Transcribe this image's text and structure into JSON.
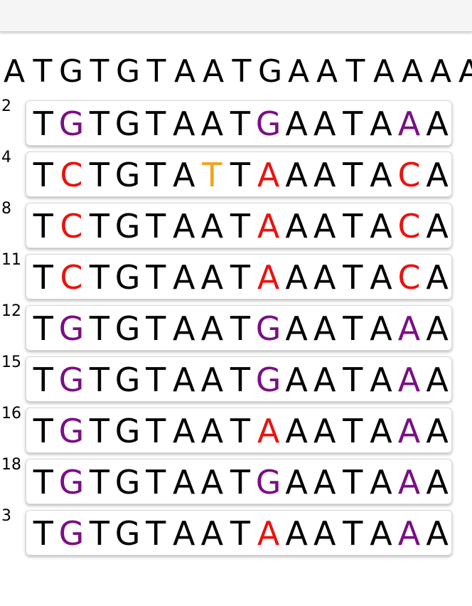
{
  "colors": {
    "default": "#000000",
    "mismatch_red": "#e8130f",
    "variant_purple": "#7a0f85",
    "insertion_orange": "#f3a21c"
  },
  "reference": {
    "sequence": "ATGTGTAATGAATAAAA"
  },
  "reads": [
    {
      "label": "2",
      "bases": [
        {
          "b": "T",
          "c": "default"
        },
        {
          "b": "G",
          "c": "variant_purple"
        },
        {
          "b": "T",
          "c": "default"
        },
        {
          "b": "G",
          "c": "default"
        },
        {
          "b": "T",
          "c": "default"
        },
        {
          "b": "A",
          "c": "default"
        },
        {
          "b": "A",
          "c": "default"
        },
        {
          "b": "T",
          "c": "default"
        },
        {
          "b": "G",
          "c": "variant_purple"
        },
        {
          "b": "A",
          "c": "default"
        },
        {
          "b": "A",
          "c": "default"
        },
        {
          "b": "T",
          "c": "default"
        },
        {
          "b": "A",
          "c": "default"
        },
        {
          "b": "A",
          "c": "variant_purple"
        },
        {
          "b": "A",
          "c": "default"
        }
      ]
    },
    {
      "label": "4",
      "bases": [
        {
          "b": "T",
          "c": "default"
        },
        {
          "b": "C",
          "c": "mismatch_red"
        },
        {
          "b": "T",
          "c": "default"
        },
        {
          "b": "G",
          "c": "default"
        },
        {
          "b": "T",
          "c": "default"
        },
        {
          "b": "A",
          "c": "default"
        },
        {
          "b": "T",
          "c": "insertion_orange"
        },
        {
          "b": "T",
          "c": "default"
        },
        {
          "b": "A",
          "c": "mismatch_red"
        },
        {
          "b": "A",
          "c": "default"
        },
        {
          "b": "A",
          "c": "default"
        },
        {
          "b": "T",
          "c": "default"
        },
        {
          "b": "A",
          "c": "default"
        },
        {
          "b": "C",
          "c": "mismatch_red"
        },
        {
          "b": "A",
          "c": "default"
        }
      ]
    },
    {
      "label": "8",
      "bases": [
        {
          "b": "T",
          "c": "default"
        },
        {
          "b": "C",
          "c": "mismatch_red"
        },
        {
          "b": "T",
          "c": "default"
        },
        {
          "b": "G",
          "c": "default"
        },
        {
          "b": "T",
          "c": "default"
        },
        {
          "b": "A",
          "c": "default"
        },
        {
          "b": "A",
          "c": "default"
        },
        {
          "b": "T",
          "c": "default"
        },
        {
          "b": "A",
          "c": "mismatch_red"
        },
        {
          "b": "A",
          "c": "default"
        },
        {
          "b": "A",
          "c": "default"
        },
        {
          "b": "T",
          "c": "default"
        },
        {
          "b": "A",
          "c": "default"
        },
        {
          "b": "C",
          "c": "mismatch_red"
        },
        {
          "b": "A",
          "c": "default"
        }
      ]
    },
    {
      "label": "11",
      "bases": [
        {
          "b": "T",
          "c": "default"
        },
        {
          "b": "C",
          "c": "mismatch_red"
        },
        {
          "b": "T",
          "c": "default"
        },
        {
          "b": "G",
          "c": "default"
        },
        {
          "b": "T",
          "c": "default"
        },
        {
          "b": "A",
          "c": "default"
        },
        {
          "b": "A",
          "c": "default"
        },
        {
          "b": "T",
          "c": "default"
        },
        {
          "b": "A",
          "c": "mismatch_red"
        },
        {
          "b": "A",
          "c": "default"
        },
        {
          "b": "A",
          "c": "default"
        },
        {
          "b": "T",
          "c": "default"
        },
        {
          "b": "A",
          "c": "default"
        },
        {
          "b": "C",
          "c": "mismatch_red"
        },
        {
          "b": "A",
          "c": "default"
        }
      ]
    },
    {
      "label": "12",
      "bases": [
        {
          "b": "T",
          "c": "default"
        },
        {
          "b": "G",
          "c": "variant_purple"
        },
        {
          "b": "T",
          "c": "default"
        },
        {
          "b": "G",
          "c": "default"
        },
        {
          "b": "T",
          "c": "default"
        },
        {
          "b": "A",
          "c": "default"
        },
        {
          "b": "A",
          "c": "default"
        },
        {
          "b": "T",
          "c": "default"
        },
        {
          "b": "G",
          "c": "variant_purple"
        },
        {
          "b": "A",
          "c": "default"
        },
        {
          "b": "A",
          "c": "default"
        },
        {
          "b": "T",
          "c": "default"
        },
        {
          "b": "A",
          "c": "default"
        },
        {
          "b": "A",
          "c": "variant_purple"
        },
        {
          "b": "A",
          "c": "default"
        }
      ]
    },
    {
      "label": "15",
      "bases": [
        {
          "b": "T",
          "c": "default"
        },
        {
          "b": "G",
          "c": "variant_purple"
        },
        {
          "b": "T",
          "c": "default"
        },
        {
          "b": "G",
          "c": "default"
        },
        {
          "b": "T",
          "c": "default"
        },
        {
          "b": "A",
          "c": "default"
        },
        {
          "b": "A",
          "c": "default"
        },
        {
          "b": "T",
          "c": "default"
        },
        {
          "b": "G",
          "c": "variant_purple"
        },
        {
          "b": "A",
          "c": "default"
        },
        {
          "b": "A",
          "c": "default"
        },
        {
          "b": "T",
          "c": "default"
        },
        {
          "b": "A",
          "c": "default"
        },
        {
          "b": "A",
          "c": "variant_purple"
        },
        {
          "b": "A",
          "c": "default"
        }
      ]
    },
    {
      "label": "16",
      "bases": [
        {
          "b": "T",
          "c": "default"
        },
        {
          "b": "G",
          "c": "variant_purple"
        },
        {
          "b": "T",
          "c": "default"
        },
        {
          "b": "G",
          "c": "default"
        },
        {
          "b": "T",
          "c": "default"
        },
        {
          "b": "A",
          "c": "default"
        },
        {
          "b": "A",
          "c": "default"
        },
        {
          "b": "T",
          "c": "default"
        },
        {
          "b": "A",
          "c": "mismatch_red"
        },
        {
          "b": "A",
          "c": "default"
        },
        {
          "b": "A",
          "c": "default"
        },
        {
          "b": "T",
          "c": "default"
        },
        {
          "b": "A",
          "c": "default"
        },
        {
          "b": "A",
          "c": "variant_purple"
        },
        {
          "b": "A",
          "c": "default"
        }
      ]
    },
    {
      "label": "18",
      "bases": [
        {
          "b": "T",
          "c": "default"
        },
        {
          "b": "G",
          "c": "variant_purple"
        },
        {
          "b": "T",
          "c": "default"
        },
        {
          "b": "G",
          "c": "default"
        },
        {
          "b": "T",
          "c": "default"
        },
        {
          "b": "A",
          "c": "default"
        },
        {
          "b": "A",
          "c": "default"
        },
        {
          "b": "T",
          "c": "default"
        },
        {
          "b": "G",
          "c": "variant_purple"
        },
        {
          "b": "A",
          "c": "default"
        },
        {
          "b": "A",
          "c": "default"
        },
        {
          "b": "T",
          "c": "default"
        },
        {
          "b": "A",
          "c": "default"
        },
        {
          "b": "A",
          "c": "variant_purple"
        },
        {
          "b": "A",
          "c": "default"
        }
      ]
    },
    {
      "label": "3",
      "bases": [
        {
          "b": "T",
          "c": "default"
        },
        {
          "b": "G",
          "c": "variant_purple"
        },
        {
          "b": "T",
          "c": "default"
        },
        {
          "b": "G",
          "c": "default"
        },
        {
          "b": "T",
          "c": "default"
        },
        {
          "b": "A",
          "c": "default"
        },
        {
          "b": "A",
          "c": "default"
        },
        {
          "b": "T",
          "c": "default"
        },
        {
          "b": "A",
          "c": "mismatch_red"
        },
        {
          "b": "A",
          "c": "default"
        },
        {
          "b": "A",
          "c": "default"
        },
        {
          "b": "T",
          "c": "default"
        },
        {
          "b": "A",
          "c": "default"
        },
        {
          "b": "A",
          "c": "variant_purple"
        },
        {
          "b": "A",
          "c": "default"
        }
      ]
    }
  ]
}
